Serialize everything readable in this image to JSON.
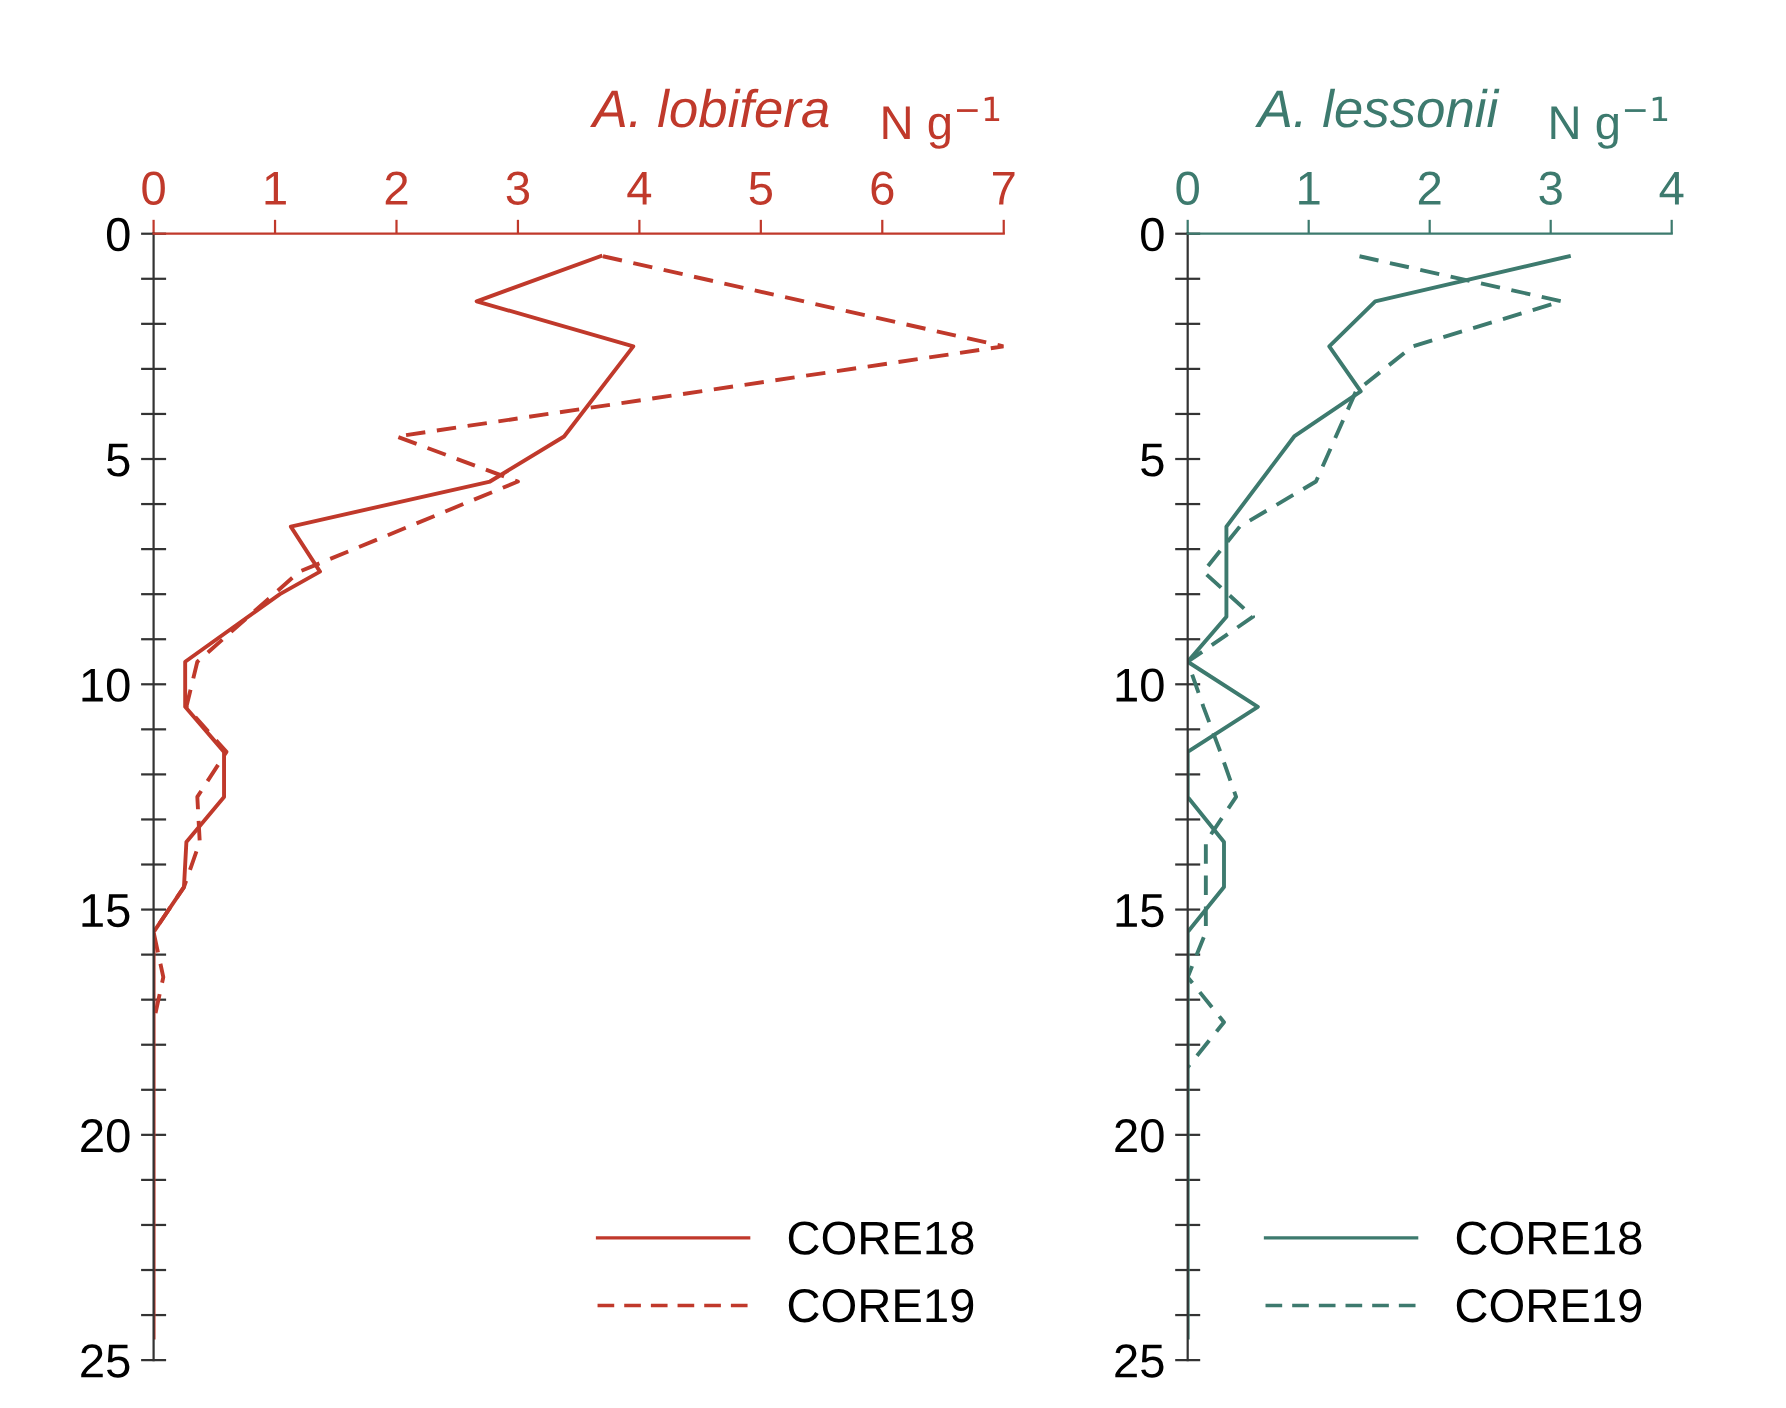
{
  "chart_data": [
    {
      "type": "line",
      "title": "A. lobifera",
      "xlabel": "N g$^{−1}$",
      "xlim": [
        0,
        7
      ],
      "xticks": [
        0,
        1,
        2,
        3,
        4,
        5,
        6,
        7
      ],
      "ylim": [
        25,
        0
      ],
      "yticks": [
        0,
        {
          "value": 1,
          "label": null
        },
        {
          "value": 2,
          "label": null
        },
        {
          "value": 3,
          "label": null
        },
        {
          "value": 4,
          "label": null
        },
        5,
        {
          "value": 6,
          "label": null
        },
        {
          "value": 7,
          "label": null
        },
        {
          "value": 8,
          "label": null
        },
        {
          "value": 9,
          "label": null
        },
        10,
        {
          "value": 11,
          "label": null
        },
        {
          "value": 12,
          "label": null
        },
        {
          "value": 13,
          "label": null
        },
        {
          "value": 14,
          "label": null
        },
        15,
        {
          "value": 16,
          "label": null
        },
        {
          "value": 17,
          "label": null
        },
        {
          "value": 18,
          "label": null
        },
        {
          "value": 19,
          "label": null
        },
        20,
        {
          "value": 21,
          "label": null
        },
        {
          "value": 22,
          "label": null
        },
        {
          "value": 23,
          "label": null
        },
        {
          "value": 24,
          "label": null
        },
        25
      ],
      "legend": "bottom right",
      "grid": false,
      "series": [
        {
          "name": "CORE18",
          "color": "#c0392b",
          "line_style": "solid",
          "x": [
            3.68,
            2.66,
            3.95,
            3.38,
            2.77,
            1.13,
            1.37,
            1.04,
            0.26,
            0.26,
            0.58,
            0.58,
            0.27,
            0.25,
            0,
            0,
            0,
            0,
            0,
            0,
            0,
            0,
            0,
            0
          ],
          "values": [
            0.5,
            1.5,
            2.5,
            4.5,
            5.5,
            6.5,
            7.5,
            8,
            9.5,
            10.5,
            11.5,
            12.5,
            13.5,
            14.5,
            15.5,
            16.5,
            17.5,
            18.5,
            19.5,
            20.5,
            21.5,
            22.5,
            23.5,
            24.5
          ]
        },
        {
          "name": "CORE19",
          "color": "#c0392b",
          "line_style": "dashed",
          "x": [
            3.7,
            7.0,
            2.0,
            3.0,
            1.2,
            0.36,
            0.27,
            0.6,
            0.36,
            0.38,
            0.25,
            0,
            0.08,
            0
          ],
          "values": [
            0.5,
            2.5,
            4.5,
            5.5,
            7.5,
            9.5,
            10.5,
            11.5,
            12.5,
            13.5,
            14.5,
            15.5,
            16.5,
            17.5
          ]
        }
      ]
    },
    {
      "type": "line",
      "title": "A. lessonii",
      "xlabel": "N g$^{−1}$",
      "xlim": [
        0,
        4
      ],
      "xticks": [
        0,
        1,
        2,
        3,
        4
      ],
      "ylim": [
        25,
        0
      ],
      "yticks": [
        0,
        {
          "value": 1,
          "label": null
        },
        {
          "value": 2,
          "label": null
        },
        {
          "value": 3,
          "label": null
        },
        {
          "value": 4,
          "label": null
        },
        5,
        {
          "value": 6,
          "label": null
        },
        {
          "value": 7,
          "label": null
        },
        {
          "value": 8,
          "label": null
        },
        {
          "value": 9,
          "label": null
        },
        10,
        {
          "value": 11,
          "label": null
        },
        {
          "value": 12,
          "label": null
        },
        {
          "value": 13,
          "label": null
        },
        {
          "value": 14,
          "label": null
        },
        15,
        {
          "value": 16,
          "label": null
        },
        {
          "value": 17,
          "label": null
        },
        {
          "value": 18,
          "label": null
        },
        {
          "value": 19,
          "label": null
        },
        20,
        {
          "value": 21,
          "label": null
        },
        {
          "value": 22,
          "label": null
        },
        {
          "value": 23,
          "label": null
        },
        {
          "value": 24,
          "label": null
        },
        25
      ],
      "legend": "bottom right",
      "grid": false,
      "series": [
        {
          "name": "CORE18",
          "color": "#3d7a6e",
          "line_style": "solid",
          "x": [
            3.15,
            1.55,
            1.17,
            1.43,
            0.88,
            0.32,
            0.32,
            0,
            0.58,
            0,
            0,
            0.3,
            0.3,
            0,
            0,
            0,
            0,
            0,
            0,
            0,
            0,
            0,
            0
          ],
          "values": [
            0.5,
            1.5,
            2.5,
            3.5,
            4.5,
            6.5,
            8.5,
            9.5,
            10.5,
            11.5,
            12.5,
            13.5,
            14.5,
            15.5,
            16.5,
            17.5,
            18.5,
            19.5,
            20.5,
            21.5,
            22.5,
            23.5,
            24.5
          ]
        },
        {
          "name": "CORE19",
          "color": "#3d7a6e",
          "line_style": "dashed",
          "x": [
            1.42,
            3.09,
            1.86,
            1.39,
            1.06,
            0.43,
            0.13,
            0.54,
            0,
            0.13,
            0.27,
            0.4,
            0.15,
            0.15,
            0.15,
            0,
            0.3,
            0
          ],
          "values": [
            0.5,
            1.5,
            2.5,
            3.5,
            5.5,
            6.5,
            7.5,
            8.5,
            9.5,
            10.5,
            11.5,
            12.5,
            13.5,
            14.5,
            15.5,
            16.5,
            17.5,
            18.5
          ]
        }
      ]
    }
  ]
}
